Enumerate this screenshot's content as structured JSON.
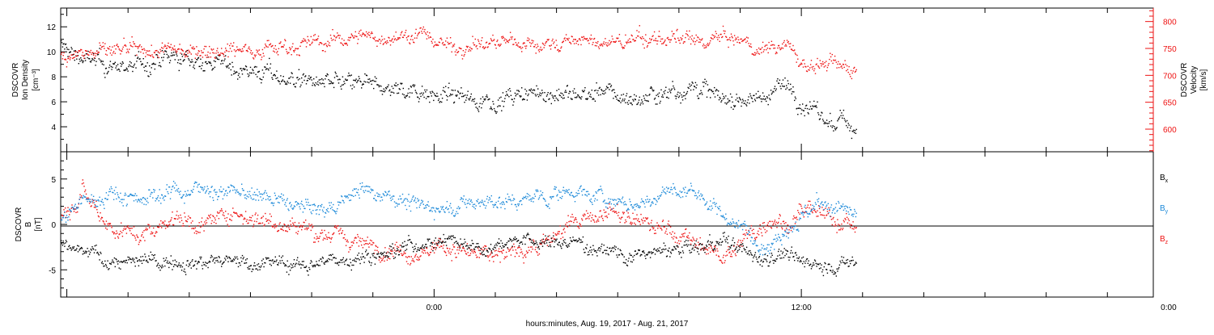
{
  "chart_data": [
    {
      "type": "scatter",
      "panel": "top",
      "ylabel": [
        "DSCOVR",
        "Ion Density",
        "[cm⁻³]"
      ],
      "y2label": [
        "DSCOVR",
        "Velocity",
        "[km/s]"
      ],
      "ylim": [
        2,
        13.5
      ],
      "yticks": [
        "4",
        "6",
        "8",
        "10",
        "12"
      ],
      "y2lim": [
        558,
        825
      ],
      "y2ticks": [
        "600",
        "650",
        "700",
        "750",
        "800"
      ],
      "series": [
        {
          "color": "#000000",
          "axis": "left",
          "anchors": [
            [
              -12.2,
              10.5
            ],
            [
              -11.5,
              9.5
            ],
            [
              -10.5,
              8.8
            ],
            [
              -9.5,
              9.0
            ],
            [
              -8.5,
              9.5
            ],
            [
              -7.5,
              9.3
            ],
            [
              -6.5,
              8.8
            ],
            [
              -5.5,
              8.3
            ],
            [
              -4.5,
              7.8
            ],
            [
              -3.5,
              7.5
            ],
            [
              -2.5,
              7.4
            ],
            [
              -1.5,
              7.1
            ],
            [
              -0.5,
              7.0
            ],
            [
              0.5,
              6.5
            ],
            [
              1.5,
              6.2
            ],
            [
              2.5,
              6.3
            ],
            [
              3.5,
              6.8
            ],
            [
              4.5,
              6.5
            ],
            [
              5.5,
              6.8
            ],
            [
              6.5,
              6.2
            ],
            [
              7.5,
              6.8
            ],
            [
              8.5,
              7.3
            ],
            [
              9.5,
              6.2
            ],
            [
              10.5,
              6.3
            ],
            [
              11.0,
              6.8
            ],
            [
              11.5,
              7.5
            ],
            [
              12.0,
              6.0
            ],
            [
              12.5,
              5.0
            ],
            [
              13.0,
              4.2
            ],
            [
              13.5,
              4.5
            ],
            [
              13.8,
              3.5
            ]
          ],
          "noise": 0.9
        },
        {
          "color": "#ee1111",
          "axis": "right",
          "anchors": [
            [
              -12.2,
              745
            ],
            [
              -11.5,
              742
            ],
            [
              -10.5,
              745
            ],
            [
              -9.5,
              743
            ],
            [
              -8.5,
              748
            ],
            [
              -7.5,
              750
            ],
            [
              -6.5,
              750
            ],
            [
              -5.5,
              752
            ],
            [
              -4.5,
              758
            ],
            [
              -3.5,
              762
            ],
            [
              -2.5,
              775
            ],
            [
              -1.5,
              770
            ],
            [
              -0.5,
              778
            ],
            [
              0.5,
              755
            ],
            [
              1.5,
              758
            ],
            [
              2.5,
              763
            ],
            [
              3.5,
              758
            ],
            [
              4.5,
              765
            ],
            [
              5.5,
              760
            ],
            [
              6.5,
              765
            ],
            [
              7.5,
              770
            ],
            [
              8.5,
              760
            ],
            [
              9.5,
              772
            ],
            [
              10.5,
              750
            ],
            [
              11.0,
              755
            ],
            [
              11.5,
              760
            ],
            [
              12.0,
              720
            ],
            [
              12.5,
              722
            ],
            [
              13.0,
              720
            ],
            [
              13.5,
              718
            ],
            [
              13.8,
              715
            ]
          ],
          "noise": 18
        }
      ]
    },
    {
      "type": "scatter",
      "panel": "bottom",
      "ylabel": [
        "DSCOVR",
        "B",
        "[nT]"
      ],
      "ylim": [
        -8,
        8
      ],
      "yticks": [
        "-5",
        "0",
        "5"
      ],
      "zero_line": true,
      "series": [
        {
          "name": "Bₓ",
          "color": "#000000",
          "anchors": [
            [
              -12.2,
              -2.5
            ],
            [
              -11.5,
              -3.0
            ],
            [
              -10.5,
              -4.0
            ],
            [
              -9.5,
              -4.2
            ],
            [
              -8.5,
              -3.8
            ],
            [
              -7.5,
              -4.0
            ],
            [
              -6.5,
              -4.2
            ],
            [
              -5.5,
              -4.0
            ],
            [
              -4.5,
              -4.5
            ],
            [
              -3.5,
              -4.0
            ],
            [
              -2.5,
              -3.5
            ],
            [
              -1.5,
              -3.0
            ],
            [
              -0.5,
              -2.0
            ],
            [
              0.5,
              -1.5
            ],
            [
              1.5,
              -2.5
            ],
            [
              2.5,
              -1.5
            ],
            [
              3.5,
              -2.0
            ],
            [
              4.5,
              -2.0
            ],
            [
              5.5,
              -2.5
            ],
            [
              6.5,
              -3.5
            ],
            [
              7.5,
              -3.0
            ],
            [
              8.5,
              -2.5
            ],
            [
              9.5,
              -2.0
            ],
            [
              10.5,
              -3.5
            ],
            [
              11.0,
              -3.5
            ],
            [
              11.5,
              -3.0
            ],
            [
              12.0,
              -4.2
            ],
            [
              12.5,
              -4.3
            ],
            [
              13.0,
              -4.5
            ],
            [
              13.5,
              -4.3
            ],
            [
              13.8,
              -4.3
            ]
          ],
          "noise": 1.0
        },
        {
          "name": "Bᵧ",
          "color": "#1a88d8",
          "anchors": [
            [
              -12.2,
              0.5
            ],
            [
              -11.5,
              2.5
            ],
            [
              -10.5,
              3.5
            ],
            [
              -9.5,
              3.0
            ],
            [
              -8.5,
              3.8
            ],
            [
              -7.5,
              4.0
            ],
            [
              -6.5,
              3.5
            ],
            [
              -5.5,
              3.0
            ],
            [
              -4.5,
              2.0
            ],
            [
              -3.5,
              1.5
            ],
            [
              -2.5,
              4.0
            ],
            [
              -1.5,
              3.5
            ],
            [
              -0.5,
              2.0
            ],
            [
              0.5,
              2.0
            ],
            [
              1.5,
              2.5
            ],
            [
              2.5,
              2.5
            ],
            [
              3.5,
              3.0
            ],
            [
              4.5,
              3.8
            ],
            [
              5.5,
              3.0
            ],
            [
              6.5,
              2.0
            ],
            [
              7.5,
              3.5
            ],
            [
              8.5,
              3.8
            ],
            [
              9.5,
              1.0
            ],
            [
              10.5,
              -1.5
            ],
            [
              11.0,
              -2.0
            ],
            [
              11.5,
              0.0
            ],
            [
              12.0,
              1.0
            ],
            [
              12.5,
              2.0
            ],
            [
              13.0,
              2.0
            ],
            [
              13.5,
              1.2
            ],
            [
              13.8,
              1.0
            ]
          ],
          "noise": 1.1
        },
        {
          "name": "B_z",
          "color": "#ee1111",
          "anchors": [
            [
              -12.2,
              1.0
            ],
            [
              -11.5,
              4.0
            ],
            [
              -10.5,
              -0.5
            ],
            [
              -9.5,
              -1.0
            ],
            [
              -8.5,
              1.0
            ],
            [
              -7.5,
              0.0
            ],
            [
              -6.5,
              1.5
            ],
            [
              -5.5,
              0.5
            ],
            [
              -4.5,
              0.0
            ],
            [
              -3.5,
              -1.0
            ],
            [
              -2.5,
              -2.0
            ],
            [
              -1.5,
              -2.5
            ],
            [
              -0.5,
              -3.0
            ],
            [
              0.5,
              -2.5
            ],
            [
              1.5,
              -3.5
            ],
            [
              2.5,
              -3.0
            ],
            [
              3.5,
              -2.0
            ],
            [
              4.5,
              0.0
            ],
            [
              5.5,
              1.5
            ],
            [
              6.5,
              0.5
            ],
            [
              7.5,
              -0.5
            ],
            [
              8.5,
              -2.0
            ],
            [
              9.5,
              -3.5
            ],
            [
              10.5,
              -0.5
            ],
            [
              11.0,
              1.0
            ],
            [
              11.5,
              0.0
            ],
            [
              12.0,
              1.5
            ],
            [
              12.5,
              1.0
            ],
            [
              13.0,
              0.5
            ],
            [
              13.5,
              0.5
            ],
            [
              13.8,
              -0.8
            ]
          ],
          "noise": 1.2
        }
      ]
    }
  ],
  "x_axis": {
    "label": "hours:minutes, Aug. 19, 2017 - Aug. 21, 2017",
    "range": [
      -12.2,
      23.5
    ],
    "tick_labels": [
      {
        "hour": 0,
        "text": "0:00"
      },
      {
        "hour": 12,
        "text": "12:00"
      },
      {
        "hour": 24,
        "text": "0:00"
      }
    ],
    "minor_step_hours": 2
  },
  "legend": {
    "entries": [
      {
        "base": "B",
        "sub": "x",
        "color": "#000000"
      },
      {
        "base": "B",
        "sub": "y",
        "color": "#1a88d8"
      },
      {
        "base": "B",
        "sub": "z",
        "color": "#ee1111"
      }
    ]
  }
}
